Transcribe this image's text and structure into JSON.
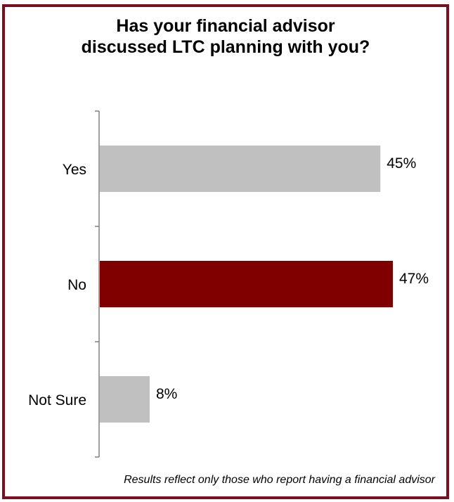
{
  "chart_data": {
    "type": "bar",
    "orientation": "horizontal",
    "title_lines": [
      "Has your financial advisor",
      "discussed LTC planning with you?"
    ],
    "categories": [
      "Yes",
      "No",
      "Not Sure"
    ],
    "values": [
      45,
      47,
      8
    ],
    "value_labels": [
      "45%",
      "47%",
      "8%"
    ],
    "colors": [
      "#c0c0c0",
      "#800000",
      "#c0c0c0"
    ],
    "xlim": [
      0,
      50
    ],
    "grid": false,
    "legend": "none"
  },
  "footnote": "Results reflect only those who report having a financial advisor",
  "colors": {
    "frame": "#7b0f1f",
    "axis": "#808080",
    "text": "#000000"
  }
}
